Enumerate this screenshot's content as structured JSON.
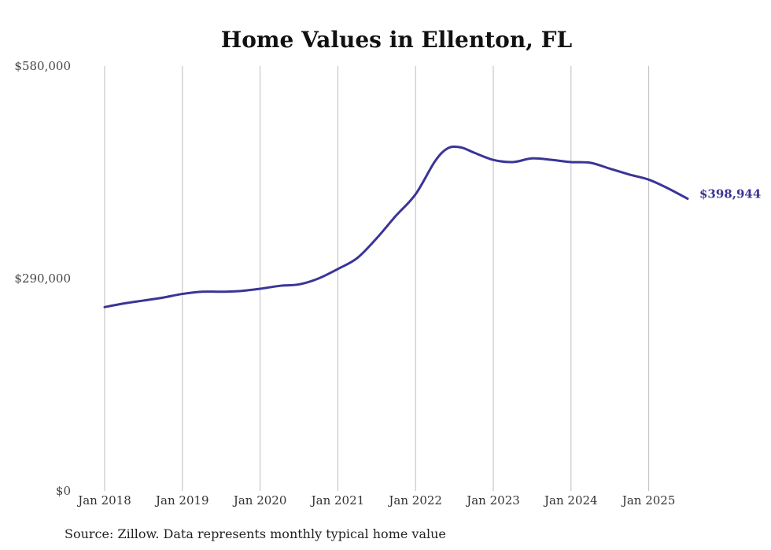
{
  "chart_data": {
    "type": "line",
    "title": "Home Values in Ellenton, FL",
    "xlabel": "",
    "ylabel": "",
    "source": "Source: Zillow. Data represents monthly typical home value",
    "ylim": [
      0,
      580000
    ],
    "yticks": [
      {
        "value": 0,
        "label": "$0"
      },
      {
        "value": 290000,
        "label": "$290,000"
      },
      {
        "value": 580000,
        "label": "$580,000"
      }
    ],
    "xlim": [
      "2018-01",
      "2025-07"
    ],
    "xticks": [
      {
        "date": "2018-01",
        "label": "Jan 2018"
      },
      {
        "date": "2019-01",
        "label": "Jan 2019"
      },
      {
        "date": "2020-01",
        "label": "Jan 2020"
      },
      {
        "date": "2021-01",
        "label": "Jan 2021"
      },
      {
        "date": "2022-01",
        "label": "Jan 2022"
      },
      {
        "date": "2023-01",
        "label": "Jan 2023"
      },
      {
        "date": "2024-01",
        "label": "Jan 2024"
      },
      {
        "date": "2025-01",
        "label": "Jan 2025"
      }
    ],
    "grid": "vertical",
    "line_color": "#3a3596",
    "end_label": "$398,944",
    "series": [
      {
        "points": [
          {
            "x": "2018-01",
            "y": 251000
          },
          {
            "x": "2018-04",
            "y": 256000
          },
          {
            "x": "2018-07",
            "y": 260000
          },
          {
            "x": "2018-10",
            "y": 264000
          },
          {
            "x": "2019-01",
            "y": 269000
          },
          {
            "x": "2019-04",
            "y": 272000
          },
          {
            "x": "2019-07",
            "y": 272000
          },
          {
            "x": "2019-10",
            "y": 273000
          },
          {
            "x": "2020-01",
            "y": 276000
          },
          {
            "x": "2020-04",
            "y": 280000
          },
          {
            "x": "2020-07",
            "y": 282000
          },
          {
            "x": "2020-10",
            "y": 290000
          },
          {
            "x": "2021-01",
            "y": 303000
          },
          {
            "x": "2021-04",
            "y": 318000
          },
          {
            "x": "2021-07",
            "y": 345000
          },
          {
            "x": "2021-10",
            "y": 376000
          },
          {
            "x": "2022-01",
            "y": 405000
          },
          {
            "x": "2022-04",
            "y": 450000
          },
          {
            "x": "2022-06",
            "y": 468000
          },
          {
            "x": "2022-08",
            "y": 469000
          },
          {
            "x": "2022-10",
            "y": 462000
          },
          {
            "x": "2023-01",
            "y": 452000
          },
          {
            "x": "2023-04",
            "y": 449000
          },
          {
            "x": "2023-07",
            "y": 454000
          },
          {
            "x": "2023-10",
            "y": 452000
          },
          {
            "x": "2024-01",
            "y": 449000
          },
          {
            "x": "2024-04",
            "y": 448000
          },
          {
            "x": "2024-07",
            "y": 440000
          },
          {
            "x": "2024-10",
            "y": 432000
          },
          {
            "x": "2025-01",
            "y": 425000
          },
          {
            "x": "2025-04",
            "y": 413000
          },
          {
            "x": "2025-07",
            "y": 398944
          }
        ]
      }
    ]
  }
}
